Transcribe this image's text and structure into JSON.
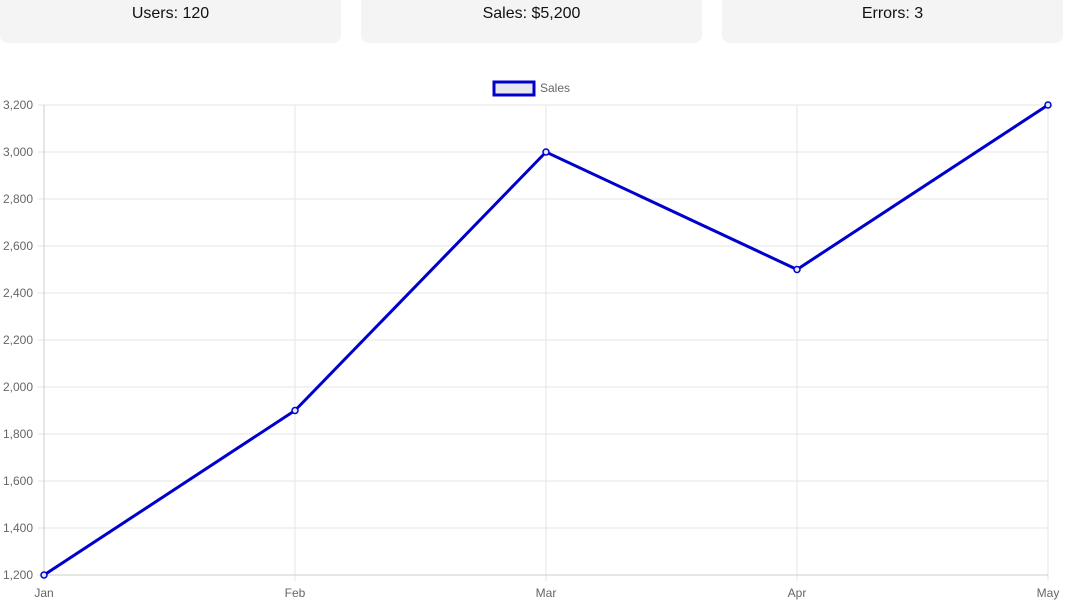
{
  "cards": [
    {
      "label": "Users: 120"
    },
    {
      "label": "Sales: $5,200"
    },
    {
      "label": "Errors: 3"
    }
  ],
  "chart_data": {
    "type": "line",
    "categories": [
      "Jan",
      "Feb",
      "Mar",
      "Apr",
      "May"
    ],
    "series": [
      {
        "name": "Sales",
        "values": [
          1200,
          1900,
          3000,
          2500,
          3200
        ],
        "color": "#0000cc"
      }
    ],
    "ylim": [
      1200,
      3200
    ],
    "yticks": [
      1200,
      1400,
      1600,
      1800,
      2000,
      2200,
      2400,
      2600,
      2800,
      3000,
      3200
    ],
    "ytick_labels": [
      "1,200",
      "1,400",
      "1,600",
      "1,800",
      "2,000",
      "2,200",
      "2,400",
      "2,600",
      "2,800",
      "3,000",
      "3,200"
    ],
    "grid": true,
    "legend_position": "top-center"
  }
}
